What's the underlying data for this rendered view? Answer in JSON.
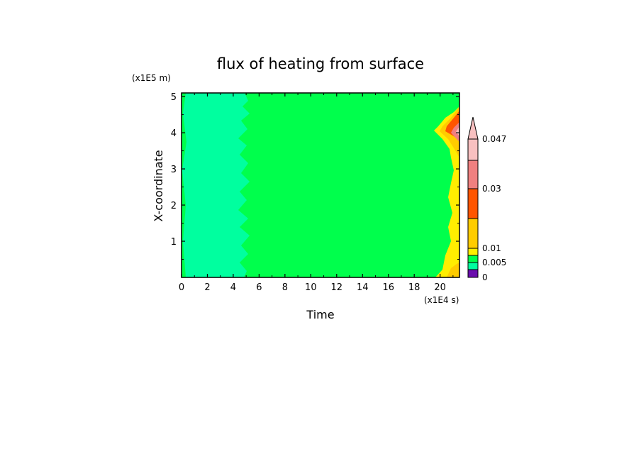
{
  "chart_data": {
    "type": "heatmap",
    "title": "flux of heating from surface",
    "xlabel": "Time",
    "ylabel": "X-coordinate",
    "x_unit": "(x1E4 s)",
    "y_unit": "(x1E5 m)",
    "xlim": [
      0,
      21.5
    ],
    "ylim": [
      0,
      5.1
    ],
    "x_ticks": [
      0,
      2,
      4,
      6,
      8,
      10,
      12,
      14,
      16,
      18,
      20
    ],
    "y_ticks": [
      1,
      2,
      3,
      4,
      5
    ],
    "colorbar": {
      "levels": [
        0,
        0.005,
        0.01,
        0.03,
        0.047
      ],
      "labels": [
        "0",
        "0.005",
        "0.01",
        "0.03",
        "0.047"
      ],
      "colors": [
        "#6a0dad",
        "#00ff9f",
        "#00ff4c",
        "#ffee00",
        "#ffcc00",
        "#ff5500",
        "#f08080",
        "#f8c0c0"
      ],
      "extend": "max"
    },
    "regions": [
      {
        "value_range": [
          0.0,
          0.005
        ],
        "color": "#00ff9f",
        "x_range": [
          0,
          5
        ]
      },
      {
        "value_range": [
          0.005,
          0.01
        ],
        "color": "#00ff4c",
        "x_range": [
          5,
          20
        ]
      },
      {
        "value_range": [
          0.01,
          0.047
        ],
        "color": "#ffcc00",
        "x_range": [
          19.5,
          21.5
        ]
      }
    ]
  }
}
